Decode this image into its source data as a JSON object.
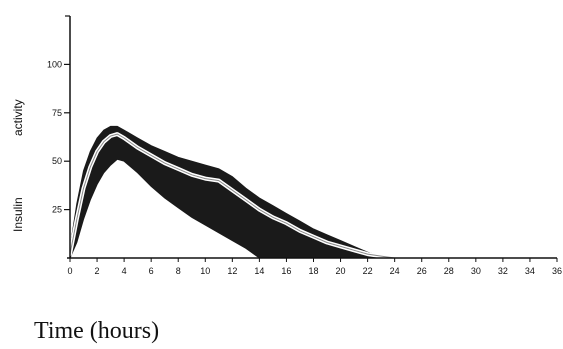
{
  "chart_data": {
    "type": "area",
    "xlabel": "Time (hours)",
    "ylabel_parts": [
      "Insulin",
      "activity"
    ],
    "xlim": [
      0,
      36
    ],
    "ylim": [
      0,
      125
    ],
    "x_ticks": [
      0,
      2,
      4,
      6,
      8,
      10,
      12,
      14,
      16,
      18,
      20,
      22,
      24,
      26,
      28,
      30,
      32,
      34,
      36
    ],
    "y_ticks": [
      25,
      50,
      75,
      100
    ],
    "grid": false,
    "legend": "none",
    "colors": {
      "band": "#1a1a1a",
      "mean_line": "#ffffff",
      "axis": "#111111"
    },
    "series": [
      {
        "role": "upper bound",
        "x": [
          0,
          0.5,
          1,
          1.5,
          2,
          2.5,
          3,
          3.5,
          4,
          5,
          6,
          7,
          8,
          9,
          10,
          11,
          12,
          13,
          14,
          15,
          16,
          17,
          18,
          19,
          20,
          21,
          22,
          23,
          24
        ],
        "values": [
          5,
          28,
          45,
          55,
          62,
          66,
          68,
          68,
          66,
          62,
          58,
          55,
          52,
          50,
          48,
          46,
          42,
          36,
          31,
          27,
          23,
          19,
          15,
          12,
          9,
          6,
          3,
          1,
          0
        ]
      },
      {
        "role": "mean",
        "x": [
          0,
          0.5,
          1,
          1.5,
          2,
          2.5,
          3,
          3.5,
          4,
          5,
          6,
          7,
          8,
          9,
          10,
          11,
          12,
          13,
          14,
          15,
          16,
          17,
          18,
          19,
          20,
          21,
          22,
          23,
          24
        ],
        "values": [
          2,
          20,
          36,
          47,
          55,
          60,
          63,
          64,
          62,
          57,
          53,
          49,
          46,
          43,
          41,
          40,
          35,
          30,
          25,
          21,
          18,
          14,
          11,
          8,
          6,
          4,
          2,
          1,
          0
        ]
      },
      {
        "role": "lower bound",
        "x": [
          0,
          0.5,
          1,
          1.5,
          2,
          2.5,
          3,
          3.5,
          4,
          5,
          6,
          7,
          8,
          9,
          10,
          11,
          12,
          13,
          14,
          15,
          16,
          17,
          18,
          19,
          20,
          21,
          22,
          23,
          24
        ],
        "values": [
          0,
          8,
          20,
          30,
          38,
          44,
          48,
          51,
          50,
          44,
          37,
          31,
          26,
          21,
          17,
          13,
          9,
          5,
          0,
          0,
          0,
          0,
          0,
          0,
          0,
          0,
          0,
          0,
          0
        ]
      }
    ]
  }
}
